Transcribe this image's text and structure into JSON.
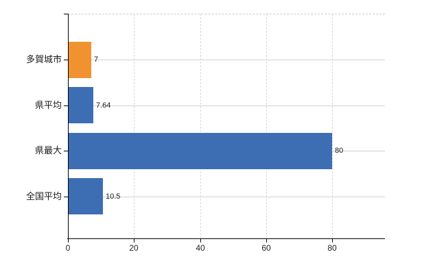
{
  "chart_data": {
    "type": "bar",
    "orientation": "horizontal",
    "title": "",
    "xlabel": "",
    "ylabel": "",
    "categories": [
      "多賀城市",
      "県平均",
      "県最大",
      "全国平均"
    ],
    "values": [
      7,
      7.64,
      80,
      10.5
    ],
    "value_labels": [
      "7",
      "7.64",
      "80",
      "10.5"
    ],
    "bar_colors": [
      "#f0922f",
      "#3d6eb4",
      "#3d6eb4",
      "#3d6eb4"
    ],
    "xticks": [
      0,
      20,
      40,
      60,
      80
    ],
    "xtick_labels": [
      "0",
      "20",
      "40",
      "60",
      "80"
    ],
    "xlim": [
      0,
      96
    ],
    "grid": true,
    "legend_position": "none"
  },
  "colors": {
    "background": "#ffffff",
    "bar_orange": "#f0922f",
    "bar_blue": "#3d6eb4",
    "axis_line": "#000000",
    "horizontal_grid": "#ccd5cc",
    "vertical_grid": "#d8d8d8",
    "plot_top_border": "#cccccc",
    "text": "#1a1a1a"
  }
}
